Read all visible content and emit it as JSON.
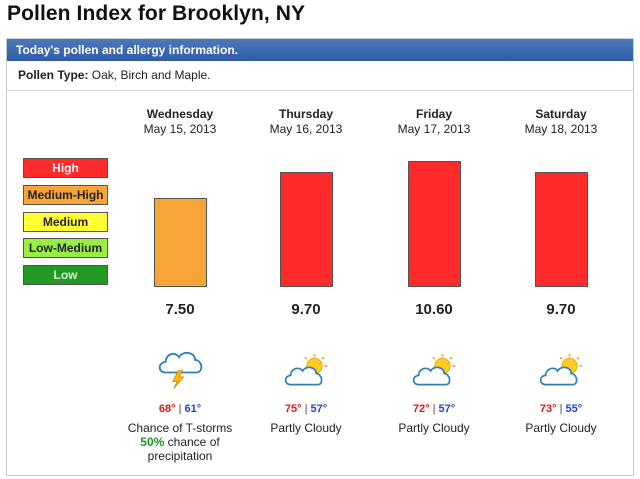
{
  "title": "Pollen Index for Brooklyn, NY",
  "header": "Today's pollen and allergy information.",
  "pollen_type": {
    "label": "Pollen Type:",
    "value": "Oak, Birch and Maple."
  },
  "legend": [
    {
      "label": "High",
      "color": "#ff2a2a"
    },
    {
      "label": "Medium-High",
      "color": "#f7a536"
    },
    {
      "label": "Medium",
      "color": "#ffff33"
    },
    {
      "label": "Low-Medium",
      "color": "#99ee44"
    },
    {
      "label": "Low",
      "color": "#229922"
    }
  ],
  "chart_data": {
    "type": "bar",
    "categories": [
      "Wednesday",
      "Thursday",
      "Friday",
      "Saturday"
    ],
    "values": [
      7.5,
      9.7,
      10.6,
      9.7
    ],
    "ylim": [
      0,
      12
    ]
  },
  "days": [
    {
      "name": "Wednesday",
      "date": "May 15, 2013",
      "value_label": "7.50",
      "level": "Medium-High",
      "color": "#f7a536",
      "icon": "thunderstorm-icon",
      "high": "68°",
      "low": "61°",
      "condition": "Chance of T-storms",
      "precip_pct": "50%",
      "precip_text": " chance of",
      "precip_text2": "precipitation"
    },
    {
      "name": "Thursday",
      "date": "May 16, 2013",
      "value_label": "9.70",
      "level": "High",
      "color": "#ff2a2a",
      "icon": "partly-cloudy-icon",
      "high": "75°",
      "low": "57°",
      "condition": "Partly Cloudy"
    },
    {
      "name": "Friday",
      "date": "May 17, 2013",
      "value_label": "10.60",
      "level": "High",
      "color": "#ff2a2a",
      "icon": "partly-cloudy-icon",
      "high": "72°",
      "low": "57°",
      "condition": "Partly Cloudy"
    },
    {
      "name": "Saturday",
      "date": "May 18, 2013",
      "value_label": "9.70",
      "level": "High",
      "color": "#ff2a2a",
      "icon": "partly-cloudy-icon",
      "high": "73°",
      "low": "55°",
      "condition": "Partly Cloudy"
    }
  ],
  "temp_separator": "|"
}
